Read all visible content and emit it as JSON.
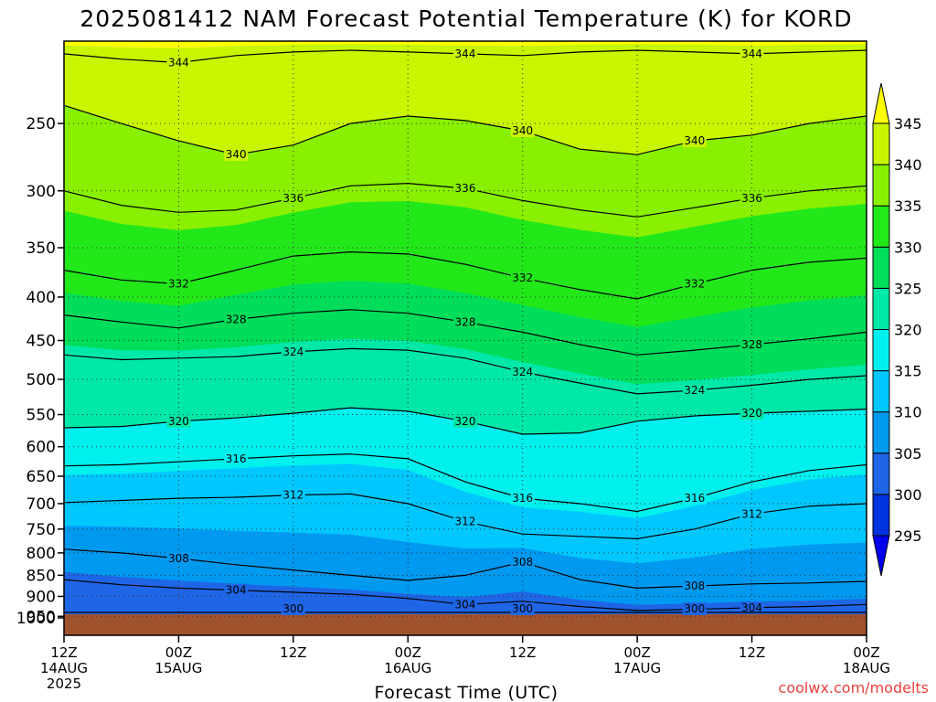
{
  "chart_data": {
    "type": "heatmap",
    "title": "2025081412 NAM Forecast Potential Temperature (K) for KORD",
    "xlabel": "Forecast Time (UTC)",
    "ylabel": "",
    "y_scale": "log-pressure",
    "ylim": [
      1000,
      200
    ],
    "y_ticks": [
      250,
      300,
      350,
      400,
      450,
      500,
      550,
      600,
      650,
      700,
      750,
      800,
      850,
      900,
      950,
      1000
    ],
    "x_ticks": [
      {
        "time": "12Z",
        "date": "14AUG",
        "year": "2025"
      },
      {
        "time": "00Z",
        "date": "15AUG",
        "year": ""
      },
      {
        "time": "12Z",
        "date": "",
        "year": ""
      },
      {
        "time": "00Z",
        "date": "16AUG",
        "year": ""
      },
      {
        "time": "12Z",
        "date": "",
        "year": ""
      },
      {
        "time": "00Z",
        "date": "17AUG",
        "year": ""
      },
      {
        "time": "12Z",
        "date": "",
        "year": ""
      },
      {
        "time": "00Z",
        "date": "18AUG",
        "year": ""
      }
    ],
    "forecast_hours": [
      0,
      6,
      12,
      18,
      24,
      30,
      36,
      42,
      48,
      54,
      60,
      66,
      72,
      78,
      84
    ],
    "grid": true,
    "colorbar": {
      "levels": [
        295,
        300,
        305,
        310,
        315,
        320,
        325,
        330,
        335,
        340,
        345
      ],
      "colors": [
        "#0000ee",
        "#0033dd",
        "#1f66e6",
        "#0099f0",
        "#00c8ff",
        "#00f0ee",
        "#00e8a8",
        "#00dd5a",
        "#22e81a",
        "#88f000",
        "#c8f500",
        "#ffff00"
      ],
      "extend": "both"
    },
    "isentropes": [
      {
        "theta": 344,
        "pressures": [
          207,
          210,
          212,
          208,
          206,
          205,
          206,
          207,
          208,
          206,
          205,
          206,
          207,
          206,
          205
        ]
      },
      {
        "theta": 340,
        "pressures": [
          238,
          250,
          262,
          272,
          265,
          250,
          245,
          248,
          255,
          268,
          272,
          262,
          258,
          250,
          245
        ]
      },
      {
        "theta": 336,
        "pressures": [
          300,
          312,
          318,
          316,
          306,
          296,
          294,
          298,
          308,
          316,
          322,
          314,
          306,
          300,
          296
        ]
      },
      {
        "theta": 332,
        "pressures": [
          372,
          382,
          386,
          372,
          358,
          354,
          356,
          366,
          380,
          392,
          402,
          386,
          372,
          364,
          360
        ]
      },
      {
        "theta": 328,
        "pressures": [
          420,
          428,
          435,
          425,
          418,
          414,
          418,
          428,
          440,
          455,
          468,
          462,
          455,
          448,
          440
        ]
      },
      {
        "theta": 324,
        "pressures": [
          468,
          474,
          472,
          470,
          464,
          460,
          462,
          472,
          490,
          505,
          520,
          515,
          508,
          500,
          495
        ]
      },
      {
        "theta": 320,
        "pressures": [
          570,
          568,
          560,
          555,
          548,
          540,
          545,
          560,
          580,
          578,
          560,
          552,
          548,
          545,
          542
        ]
      },
      {
        "theta": 316,
        "pressures": [
          632,
          630,
          625,
          620,
          615,
          612,
          620,
          660,
          690,
          700,
          715,
          690,
          660,
          640,
          630
        ]
      },
      {
        "theta": 312,
        "pressures": [
          698,
          694,
          690,
          688,
          684,
          682,
          700,
          735,
          760,
          765,
          770,
          750,
          720,
          705,
          700
        ]
      },
      {
        "theta": 308,
        "pressures": [
          792,
          800,
          812,
          826,
          838,
          850,
          862,
          850,
          820,
          860,
          880,
          875,
          870,
          868,
          864
        ]
      },
      {
        "theta": 304,
        "pressures": [
          860,
          872,
          880,
          885,
          890,
          895,
          905,
          920,
          912,
          925,
          935,
          932,
          928,
          925,
          920
        ]
      },
      {
        "theta": 300,
        "pressures": [
          950,
          958,
          960,
          962,
          966,
          968,
          970,
          975,
          980,
          985,
          988,
          985,
          980,
          976,
          972
        ]
      }
    ],
    "theta_surface": 301.5,
    "theta_top": 345.5
  },
  "colorbar_labels": [
    "345",
    "340",
    "335",
    "330",
    "325",
    "320",
    "315",
    "310",
    "305",
    "300",
    "295"
  ],
  "credit": "coolwx.com/modelts"
}
